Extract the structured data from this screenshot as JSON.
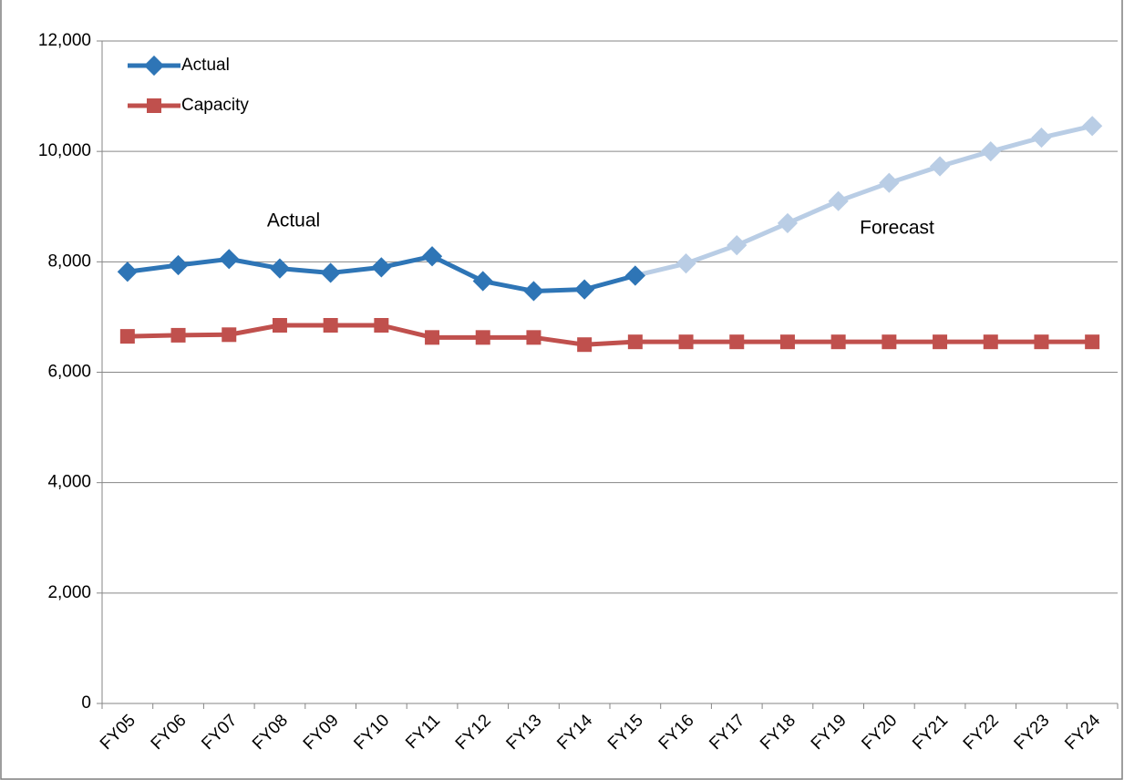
{
  "chart_data": {
    "type": "line",
    "categories": [
      "FY05",
      "FY06",
      "FY07",
      "FY08",
      "FY09",
      "FY10",
      "FY11",
      "FY12",
      "FY13",
      "FY14",
      "FY15",
      "FY16",
      "FY17",
      "FY18",
      "FY19",
      "FY20",
      "FY21",
      "FY22",
      "FY23",
      "FY24"
    ],
    "series": [
      {
        "name": "Actual",
        "color": "#2e75b6",
        "marker": "diamond",
        "values": [
          7820,
          7940,
          8050,
          7880,
          7800,
          7900,
          8100,
          7650,
          7470,
          7500,
          7750,
          null,
          null,
          null,
          null,
          null,
          null,
          null,
          null,
          null
        ]
      },
      {
        "name": "Capacity",
        "color": "#c0504d",
        "marker": "square",
        "values": [
          6650,
          6670,
          6680,
          6850,
          6850,
          6850,
          6630,
          6630,
          6630,
          6500,
          6550,
          6550,
          6550,
          6550,
          6550,
          6550,
          6550,
          6550,
          6550,
          6550
        ]
      },
      {
        "color": "#b9cde5",
        "marker": "diamond",
        "values": [
          null,
          null,
          null,
          null,
          null,
          null,
          null,
          null,
          null,
          null,
          7750,
          7970,
          8300,
          8700,
          9100,
          9430,
          9730,
          10000,
          10250,
          10460
        ]
      }
    ],
    "annotations": [
      "Actual",
      "Forecast"
    ],
    "ylim": [
      0,
      12000
    ],
    "yticks": [
      0,
      {
        "value": 2000,
        "label": "2,000"
      },
      {
        "value": 4000,
        "label": "4,000"
      },
      {
        "value": 6000,
        "label": "6,000"
      },
      {
        "value": 8000,
        "label": "8,000"
      },
      {
        "value": 10000,
        "label": "10,000"
      },
      {
        "value": 12000,
        "label": "12,000"
      }
    ],
    "grid": true
  }
}
